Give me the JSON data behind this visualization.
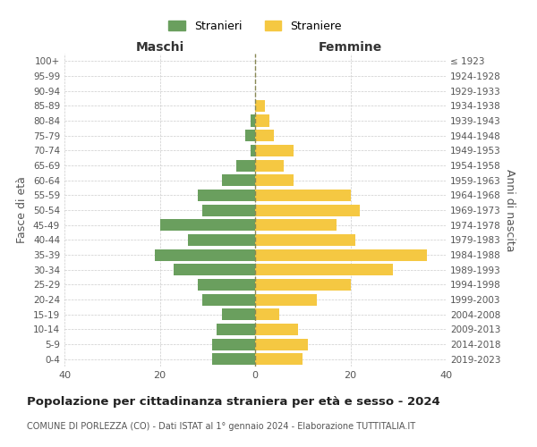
{
  "age_groups": [
    "0-4",
    "5-9",
    "10-14",
    "15-19",
    "20-24",
    "25-29",
    "30-34",
    "35-39",
    "40-44",
    "45-49",
    "50-54",
    "55-59",
    "60-64",
    "65-69",
    "70-74",
    "75-79",
    "80-84",
    "85-89",
    "90-94",
    "95-99",
    "100+"
  ],
  "birth_years": [
    "2019-2023",
    "2014-2018",
    "2009-2013",
    "2004-2008",
    "1999-2003",
    "1994-1998",
    "1989-1993",
    "1984-1988",
    "1979-1983",
    "1974-1978",
    "1969-1973",
    "1964-1968",
    "1959-1963",
    "1954-1958",
    "1949-1953",
    "1944-1948",
    "1939-1943",
    "1934-1938",
    "1929-1933",
    "1924-1928",
    "≤ 1923"
  ],
  "maschi": [
    9,
    9,
    8,
    7,
    11,
    12,
    17,
    21,
    14,
    20,
    11,
    12,
    7,
    4,
    1,
    2,
    1,
    0,
    0,
    0,
    0
  ],
  "femmine": [
    10,
    11,
    9,
    5,
    13,
    20,
    29,
    36,
    21,
    17,
    22,
    20,
    8,
    6,
    8,
    4,
    3,
    2,
    0,
    0,
    0
  ],
  "maschi_color": "#6a9f5e",
  "femmine_color": "#f5c842",
  "title": "Popolazione per cittadinanza straniera per età e sesso - 2024",
  "subtitle": "COMUNE DI PORLEZZA (CO) - Dati ISTAT al 1° gennaio 2024 - Elaborazione TUTTITALIA.IT",
  "xlabel_left": "Maschi",
  "xlabel_right": "Femmine",
  "ylabel_left": "Fasce di età",
  "ylabel_right": "Anni di nascita",
  "xlim": 40,
  "legend_stranieri": "Stranieri",
  "legend_straniere": "Straniere",
  "background_color": "#ffffff",
  "grid_color": "#cccccc"
}
